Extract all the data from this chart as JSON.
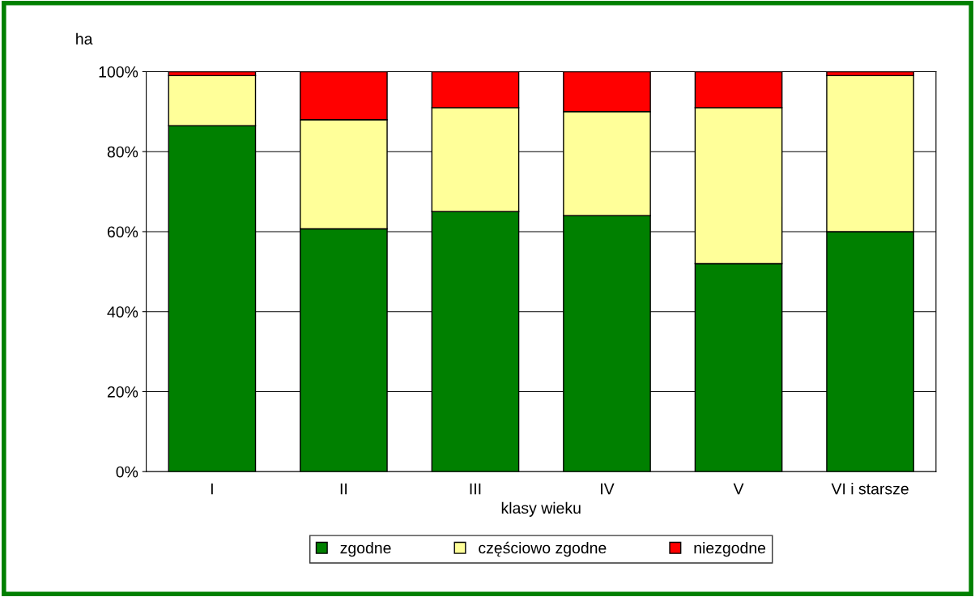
{
  "chart_data": {
    "type": "bar",
    "stacked": true,
    "ylabel": "ha",
    "xlabel": "klasy wieku",
    "categories": [
      "I",
      "II",
      "III",
      "IV",
      "V",
      "VI i starsze"
    ],
    "series": [
      {
        "name": "zgodne",
        "color": "#008000",
        "values": [
          86.5,
          60.7,
          65,
          64,
          52,
          60
        ]
      },
      {
        "name": "częściowo zgodne",
        "color": "#ffff99",
        "values": [
          12.5,
          27.3,
          26,
          26,
          39,
          39
        ]
      },
      {
        "name": "niezgodne",
        "color": "#ff0000",
        "values": [
          1,
          12,
          9,
          10,
          9,
          1
        ]
      }
    ],
    "ylim": [
      0,
      100
    ],
    "yticks": [
      {
        "value": 0,
        "label": "0%"
      },
      {
        "value": 20,
        "label": "20%"
      },
      {
        "value": 40,
        "label": "40%"
      },
      {
        "value": 60,
        "label": "60%"
      },
      {
        "value": 80,
        "label": "80%"
      },
      {
        "value": 100,
        "label": "100%"
      }
    ],
    "grid": "y",
    "legend": "bottom"
  }
}
